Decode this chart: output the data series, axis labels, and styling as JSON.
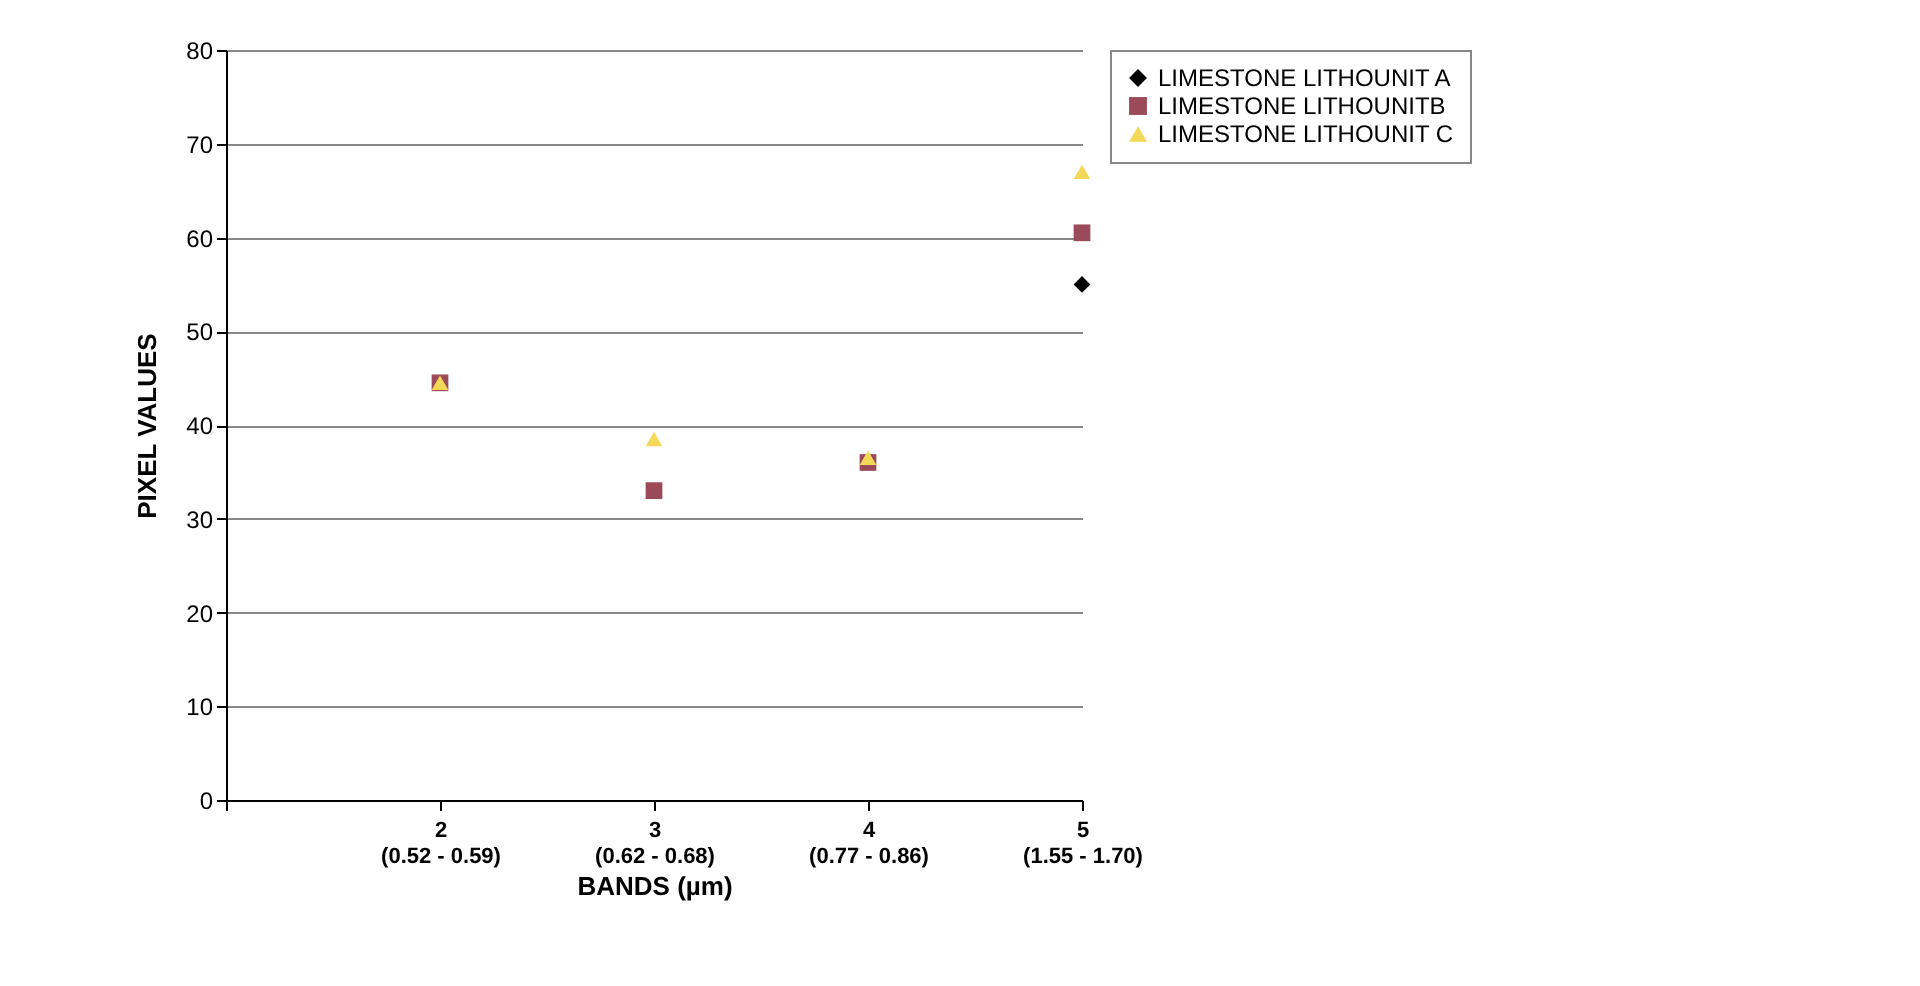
{
  "chart_data": {
    "type": "scatter",
    "xlabel": "BANDS (µm)",
    "ylabel": "PIXEL VALUES",
    "categories": [
      null,
      "2\n(0.52 - 0.59)",
      "3\n(0.62 - 0.68)",
      "4\n(0.77 - 0.86)",
      "5\n(1.55 - 1.70)"
    ],
    "series": [
      {
        "name": "LIMESTONE LITHOUNIT A",
        "color": "#000000",
        "marker": "diamond",
        "values": [
          null,
          null,
          null,
          null,
          55
        ]
      },
      {
        "name": "LIMESTONE LITHOUNITB",
        "color": "#9b4a5a",
        "marker": "square",
        "values": [
          null,
          44.5,
          33,
          36,
          60.5
        ]
      },
      {
        "name": "LIMESTONE LITHOUNIT C",
        "color": "#f5d85a",
        "marker": "triangle",
        "values": [
          null,
          44.5,
          38.5,
          36.5,
          67
        ]
      }
    ],
    "ylim": [
      0,
      80
    ],
    "yticks": [
      0,
      10,
      20,
      30,
      40,
      50,
      60,
      70,
      80
    ],
    "grid": "y",
    "legend": "right"
  }
}
